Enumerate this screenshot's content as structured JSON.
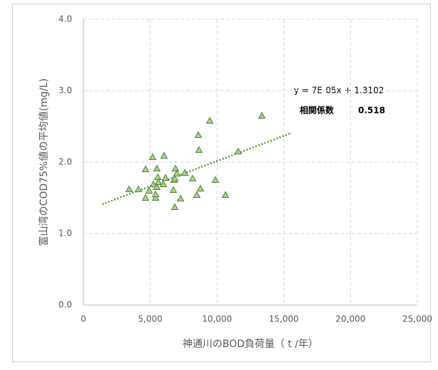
{
  "chart_data": {
    "type": "scatter",
    "xlabel": "神通川のBOD負荷量（ t /年）",
    "ylabel": "富山湾のCOD75%値の平均値(mg/L)",
    "x": [
      3420,
      4110,
      4650,
      4650,
      4920,
      5180,
      5240,
      5400,
      5400,
      5500,
      5500,
      5560,
      5610,
      5980,
      6040,
      6140,
      6730,
      6780,
      6840,
      6890,
      7000,
      6840,
      7270,
      7590,
      8170,
      8490,
      8600,
      8650,
      8760,
      9460,
      9880,
      10630,
      11590,
      13360
    ],
    "values": [
      1.62,
      1.62,
      1.9,
      1.5,
      1.6,
      2.07,
      1.69,
      1.5,
      1.55,
      1.65,
      1.91,
      1.79,
      1.72,
      1.69,
      2.09,
      1.78,
      1.61,
      1.75,
      1.37,
      1.91,
      1.84,
      1.77,
      1.49,
      1.85,
      1.77,
      1.54,
      2.38,
      2.17,
      1.63,
      2.58,
      1.75,
      1.54,
      2.15,
      2.65
    ],
    "color": "#a9d18e",
    "edge_color": "#538135",
    "trendline": {
      "label": "y = 7E-05x + 1.3102",
      "x": [
        1400,
        15600
      ],
      "values": [
        1.41,
        2.41
      ],
      "color": "#4e9a2a"
    },
    "correlation": {
      "label": "相関係数",
      "value": 0.518
    },
    "xlim": [
      0,
      25000
    ],
    "xticks": [
      0,
      {
        "value": 5000,
        "label": "5,000"
      },
      {
        "value": 10000,
        "label": "10,000"
      },
      {
        "value": 15000,
        "label": "15,000"
      },
      {
        "value": 20000,
        "label": "20,000"
      },
      {
        "value": 25000,
        "label": "25,000"
      }
    ],
    "ylim": [
      0,
      4
    ],
    "yticks": [
      {
        "value": 0,
        "label": "0.0"
      },
      {
        "value": 1,
        "label": "1.0"
      },
      {
        "value": 2,
        "label": "2.0"
      },
      {
        "value": 3,
        "label": "3.0"
      },
      {
        "value": 4,
        "label": "4.0"
      }
    ],
    "grid": true
  }
}
